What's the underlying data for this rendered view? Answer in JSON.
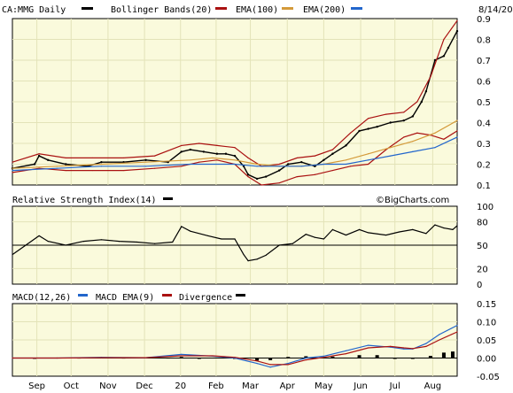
{
  "chart_data": [
    {
      "type": "line",
      "panel": "price",
      "title": "CA:MMG Daily",
      "date": "8/14/20",
      "legend": [
        {
          "label": "CA:MMG Daily",
          "color": "#000000"
        },
        {
          "label": "Bollinger Bands(20)",
          "color": "#000000"
        },
        {
          "label": "EMA(100)",
          "color": "#aa1111"
        },
        {
          "label": "EMA(200)",
          "color": "#d49a3a"
        }
      ],
      "ylim": [
        0.1,
        0.9
      ],
      "y_ticks": [
        "0.9",
        "0.8",
        "0.7",
        "0.6",
        "0.5",
        "0.4",
        "0.3",
        "0.2",
        "0.1"
      ],
      "x_ticks": [
        {
          "label": "Sep",
          "t": 0.055
        },
        {
          "label": "Oct",
          "t": 0.132
        },
        {
          "label": "Nov",
          "t": 0.215
        },
        {
          "label": "Dec",
          "t": 0.297
        },
        {
          "label": "20",
          "t": 0.378
        },
        {
          "label": "Feb",
          "t": 0.458
        },
        {
          "label": "Mar",
          "t": 0.535
        },
        {
          "label": "Apr",
          "t": 0.618
        },
        {
          "label": "May",
          "t": 0.7
        },
        {
          "label": "Jun",
          "t": 0.783
        },
        {
          "label": "Jul",
          "t": 0.86
        },
        {
          "label": "Aug",
          "t": 0.945
        }
      ],
      "series": [
        {
          "name": "CA:MMG Daily",
          "color": "#000000",
          "x": [
            0,
            0.05,
            0.06,
            0.08,
            0.12,
            0.17,
            0.2,
            0.25,
            0.3,
            0.35,
            0.38,
            0.4,
            0.43,
            0.46,
            0.48,
            0.5,
            0.52,
            0.53,
            0.55,
            0.57,
            0.6,
            0.62,
            0.65,
            0.68,
            0.7,
            0.72,
            0.75,
            0.78,
            0.8,
            0.82,
            0.85,
            0.88,
            0.9,
            0.92,
            0.93,
            0.95,
            0.97,
            0.98,
            1.0
          ],
          "values": [
            0.18,
            0.2,
            0.24,
            0.22,
            0.2,
            0.19,
            0.21,
            0.21,
            0.22,
            0.21,
            0.26,
            0.27,
            0.26,
            0.25,
            0.25,
            0.24,
            0.19,
            0.15,
            0.13,
            0.14,
            0.17,
            0.2,
            0.21,
            0.19,
            0.22,
            0.25,
            0.29,
            0.36,
            0.37,
            0.38,
            0.4,
            0.41,
            0.43,
            0.5,
            0.55,
            0.7,
            0.72,
            0.76,
            0.84
          ]
        },
        {
          "name": "Bollinger Bands(20)",
          "color": "#aa1111",
          "x": [
            0,
            0.06,
            0.12,
            0.18,
            0.25,
            0.32,
            0.38,
            0.42,
            0.46,
            0.5,
            0.53,
            0.56,
            0.6,
            0.64,
            0.68,
            0.72,
            0.76,
            0.8,
            0.84,
            0.88,
            0.91,
            0.94,
            0.97,
            1.0
          ],
          "values": [
            0.21,
            0.25,
            0.23,
            0.23,
            0.23,
            0.24,
            0.29,
            0.3,
            0.29,
            0.28,
            0.23,
            0.19,
            0.2,
            0.23,
            0.24,
            0.27,
            0.35,
            0.42,
            0.44,
            0.45,
            0.5,
            0.62,
            0.8,
            0.89
          ]
        },
        {
          "name": "Bollinger Bands(20)",
          "color": "#aa1111",
          "x": [
            0,
            0.06,
            0.12,
            0.18,
            0.25,
            0.32,
            0.38,
            0.42,
            0.46,
            0.5,
            0.53,
            0.56,
            0.6,
            0.64,
            0.68,
            0.72,
            0.76,
            0.8,
            0.84,
            0.88,
            0.91,
            0.94,
            0.97,
            1.0
          ],
          "values": [
            0.16,
            0.18,
            0.17,
            0.17,
            0.17,
            0.18,
            0.19,
            0.21,
            0.22,
            0.2,
            0.14,
            0.1,
            0.11,
            0.14,
            0.15,
            0.17,
            0.19,
            0.2,
            0.27,
            0.33,
            0.35,
            0.34,
            0.32,
            0.36
          ]
        },
        {
          "name": "EMA(100)",
          "color": "#d49a3a",
          "x": [
            0,
            0.1,
            0.2,
            0.3,
            0.4,
            0.45,
            0.5,
            0.55,
            0.6,
            0.65,
            0.7,
            0.75,
            0.8,
            0.85,
            0.9,
            0.95,
            1.0
          ],
          "values": [
            0.18,
            0.19,
            0.2,
            0.21,
            0.22,
            0.23,
            0.22,
            0.2,
            0.19,
            0.19,
            0.2,
            0.22,
            0.25,
            0.28,
            0.31,
            0.35,
            0.41
          ]
        },
        {
          "name": "EMA(200)",
          "color": "#2266cc",
          "x": [
            0,
            0.1,
            0.2,
            0.3,
            0.4,
            0.5,
            0.55,
            0.6,
            0.65,
            0.7,
            0.75,
            0.8,
            0.85,
            0.9,
            0.95,
            1.0
          ],
          "values": [
            0.17,
            0.18,
            0.19,
            0.19,
            0.2,
            0.2,
            0.19,
            0.19,
            0.19,
            0.2,
            0.2,
            0.22,
            0.24,
            0.26,
            0.28,
            0.33
          ]
        }
      ]
    },
    {
      "type": "line",
      "panel": "rsi",
      "title": "Relative Strength Index(14)",
      "watermark": "©BigCharts.com",
      "ylim": [
        0,
        100
      ],
      "y_ticks": [
        "100",
        "80",
        "50",
        "20",
        "0"
      ],
      "reference_line": 50,
      "series": [
        {
          "name": "Relative Strength Index(14)",
          "color": "#000000",
          "x": [
            0,
            0.03,
            0.06,
            0.08,
            0.12,
            0.16,
            0.2,
            0.24,
            0.28,
            0.32,
            0.36,
            0.38,
            0.4,
            0.44,
            0.47,
            0.5,
            0.52,
            0.53,
            0.55,
            0.57,
            0.6,
            0.63,
            0.66,
            0.68,
            0.7,
            0.72,
            0.75,
            0.78,
            0.8,
            0.84,
            0.87,
            0.9,
            0.93,
            0.95,
            0.97,
            0.99,
            1.0
          ],
          "values": [
            38,
            50,
            62,
            55,
            50,
            55,
            57,
            55,
            54,
            52,
            54,
            74,
            68,
            62,
            58,
            58,
            38,
            30,
            32,
            37,
            50,
            52,
            64,
            60,
            58,
            70,
            63,
            70,
            66,
            63,
            67,
            70,
            65,
            76,
            72,
            70,
            75
          ]
        }
      ]
    },
    {
      "type": "line",
      "panel": "macd",
      "title": "MACD(12,26)",
      "legend": [
        {
          "label": "MACD(12,26)",
          "color": "#000000"
        },
        {
          "label": "MACD EMA(9)",
          "color": "#2266cc"
        },
        {
          "label": "Divergence",
          "color": "#000000"
        }
      ],
      "ylim": [
        -0.05,
        0.15
      ],
      "y_ticks": [
        "0.15",
        "0.10",
        "0.05",
        "0.00",
        "-0.05"
      ],
      "series": [
        {
          "name": "MACD(12,26)",
          "color": "#2266cc",
          "x": [
            0,
            0.1,
            0.2,
            0.3,
            0.38,
            0.45,
            0.5,
            0.55,
            0.58,
            0.62,
            0.66,
            0.7,
            0.75,
            0.8,
            0.85,
            0.88,
            0.9,
            0.93,
            0.96,
            1.0
          ],
          "values": [
            0.0,
            0.0,
            0.002,
            0.001,
            0.01,
            0.005,
            0.0,
            -0.015,
            -0.025,
            -0.015,
            0.0,
            0.005,
            0.02,
            0.035,
            0.03,
            0.025,
            0.025,
            0.04,
            0.065,
            0.09
          ]
        },
        {
          "name": "MACD EMA(9)",
          "color": "#aa1111",
          "x": [
            0,
            0.1,
            0.2,
            0.3,
            0.38,
            0.45,
            0.5,
            0.55,
            0.58,
            0.62,
            0.66,
            0.7,
            0.75,
            0.8,
            0.85,
            0.88,
            0.9,
            0.93,
            0.96,
            1.0
          ],
          "values": [
            0.0,
            0.0,
            0.001,
            0.001,
            0.006,
            0.006,
            0.002,
            -0.008,
            -0.018,
            -0.018,
            -0.005,
            0.002,
            0.012,
            0.028,
            0.032,
            0.028,
            0.026,
            0.032,
            0.05,
            0.072
          ]
        },
        {
          "name": "Divergence",
          "color": "#000000",
          "kind": "bars",
          "x": [
            0.05,
            0.15,
            0.25,
            0.35,
            0.38,
            0.42,
            0.5,
            0.55,
            0.58,
            0.62,
            0.66,
            0.72,
            0.78,
            0.82,
            0.86,
            0.9,
            0.94,
            0.97,
            0.99
          ],
          "values": [
            -0.001,
            0.001,
            0.001,
            0.001,
            0.003,
            0.0,
            -0.002,
            -0.007,
            -0.006,
            0.003,
            0.005,
            0.004,
            0.008,
            0.008,
            0.0,
            -0.002,
            0.006,
            0.015,
            0.018
          ]
        }
      ]
    }
  ]
}
